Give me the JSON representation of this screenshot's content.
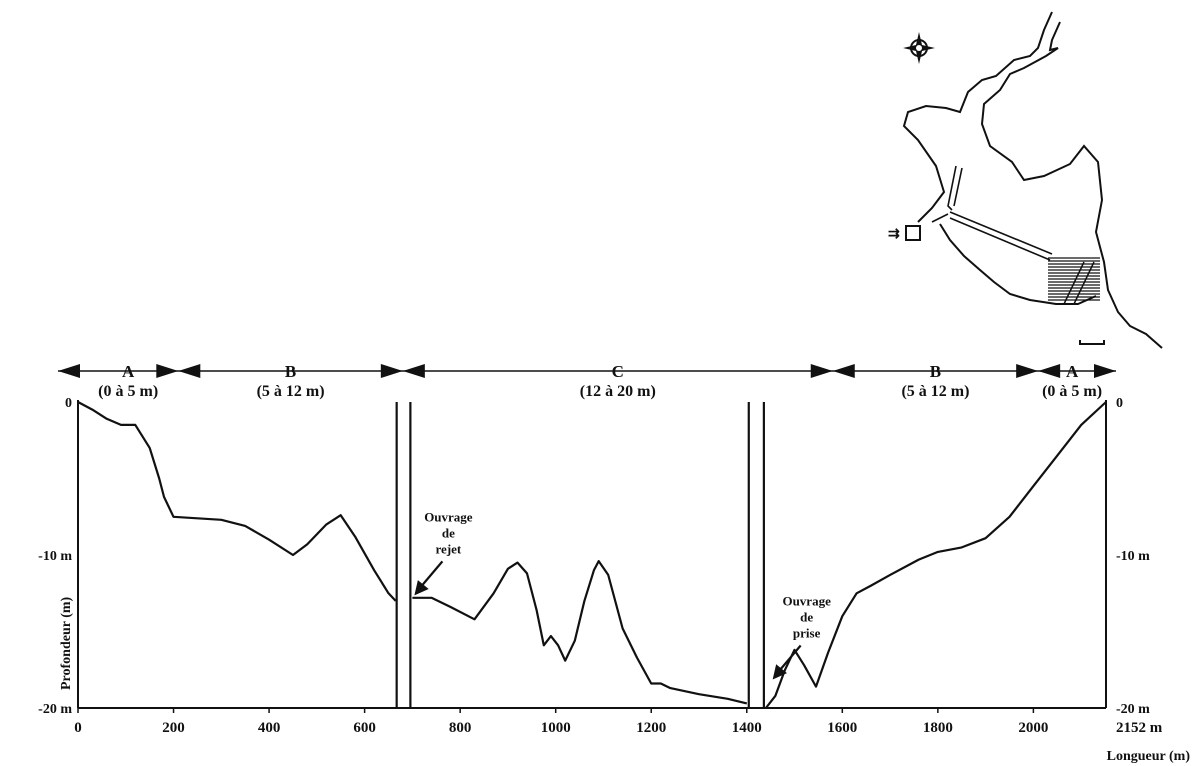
{
  "chart_data": {
    "type": "line",
    "title": "",
    "xlabel": "Longueur (m)",
    "ylabel": "Profondeur (m)",
    "xlim": [
      0,
      2152
    ],
    "ylim": [
      -20,
      0
    ],
    "x_ticks": [
      "0",
      "200",
      "400",
      "600",
      "800",
      "1000",
      "1200",
      "1400",
      "1600",
      "1800",
      "2000"
    ],
    "x_end_label": "2152 m",
    "y_labels_left": [
      "0",
      "-10 m",
      "-20 m"
    ],
    "y_labels_right": [
      "0",
      "-10 m",
      "-20 m"
    ],
    "zones": [
      {
        "letter": "A",
        "range": "(0 à 5 m)",
        "x_start": 0,
        "x_end": 210
      },
      {
        "letter": "B",
        "range": "(5 à 12 m)",
        "x_start": 210,
        "x_end": 680
      },
      {
        "letter": "C",
        "range": "(12 à 20 m)",
        "x_start": 680,
        "x_end": 1580
      },
      {
        "letter": "B",
        "range": "(5 à 12 m)",
        "x_start": 1580,
        "x_end": 2010
      },
      {
        "letter": "A",
        "range": "(0 à 5 m)",
        "x_start": 2010,
        "x_end": 2152
      }
    ],
    "annotations": [
      {
        "text": [
          "Ouvrage",
          "de",
          "rejet"
        ],
        "x": 700,
        "y": -12.9
      },
      {
        "text": [
          "Ouvrage",
          "de",
          "prise"
        ],
        "x": 1450,
        "y": -18.4
      }
    ],
    "series": [
      {
        "segment": "left",
        "x": [
          0,
          30,
          60,
          90,
          120,
          150,
          170,
          180,
          200,
          250,
          300,
          350,
          400,
          450,
          480,
          520,
          550,
          580,
          620,
          650,
          665
        ],
        "y": [
          0,
          -0.5,
          -1.1,
          -1.5,
          -1.5,
          -3,
          -5,
          -6.2,
          -7.5,
          -7.6,
          -7.7,
          -8.1,
          -9,
          -10,
          -9.3,
          -8,
          -7.4,
          -8.8,
          -11,
          -12.5,
          -13
        ]
      },
      {
        "segment": "middle",
        "x": [
          700,
          740,
          780,
          830,
          870,
          900,
          920,
          940,
          960,
          975,
          990,
          1005,
          1020,
          1040,
          1060,
          1080,
          1090,
          1110,
          1140,
          1170,
          1200,
          1220,
          1240,
          1300,
          1360,
          1400
        ],
        "y": [
          -12.8,
          -12.8,
          -13.4,
          -14.2,
          -12.5,
          -10.9,
          -10.5,
          -11.2,
          -13.6,
          -15.9,
          -15.3,
          -15.9,
          -16.9,
          -15.6,
          -13,
          -11,
          -10.4,
          -11.3,
          -14.8,
          -16.7,
          -18.4,
          -18.4,
          -18.7,
          -19.1,
          -19.4,
          -19.7
        ]
      },
      {
        "segment": "right",
        "x": [
          1440,
          1460,
          1480,
          1500,
          1520,
          1545,
          1570,
          1600,
          1630,
          1660,
          1700,
          1760,
          1800,
          1850,
          1900,
          1950,
          2000,
          2050,
          2100,
          2152
        ],
        "y": [
          -20,
          -19.2,
          -17.5,
          -16.2,
          -17.2,
          -18.6,
          -16.4,
          -14,
          -12.5,
          -12,
          -11.3,
          -10.3,
          -9.8,
          -9.5,
          -8.9,
          -7.5,
          -5.5,
          -3.5,
          -1.5,
          0
        ]
      }
    ],
    "map_inset": {
      "compass_icon": "compass-rose-icon",
      "pipe_arrow_text": "⇉"
    }
  }
}
